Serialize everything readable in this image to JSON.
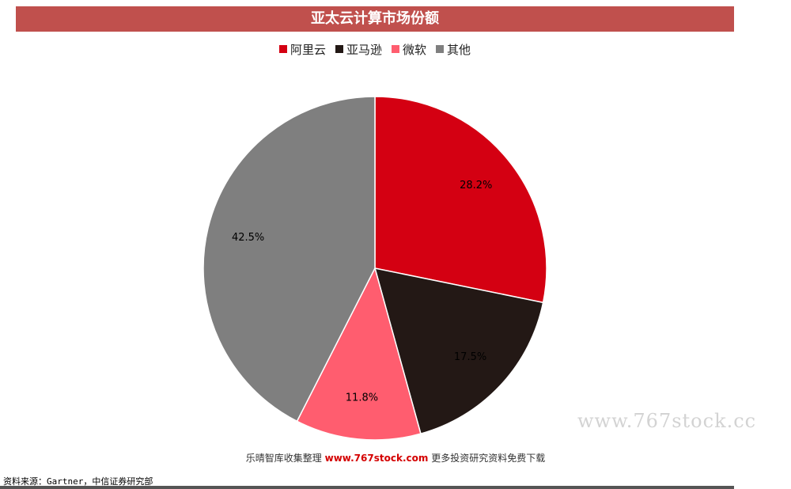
{
  "chart_data": {
    "type": "pie",
    "title": "亚太云计算市场份额",
    "slices": [
      {
        "name": "阿里云",
        "value": 28.2,
        "label": "28.2%",
        "color": "#d40012"
      },
      {
        "name": "亚马逊",
        "value": 17.5,
        "label": "17.5%",
        "color": "#231815"
      },
      {
        "name": "微软",
        "value": 11.8,
        "label": "11.8%",
        "color": "#ff5d6f"
      },
      {
        "name": "其他",
        "value": 42.5,
        "label": "42.5%",
        "color": "#7f7f7f"
      }
    ],
    "legend_position": "top",
    "start_angle_deg": 0,
    "direction": "clockwise"
  },
  "watermarks": {
    "right": "www.767stock.cc",
    "bottom_prefix": "乐晴智库收集整理",
    "bottom_link": "www.767stock.com",
    "bottom_suffix": "更多投资研究资料免费下载"
  },
  "source": "资料来源：Gartner，中信证券研究部"
}
